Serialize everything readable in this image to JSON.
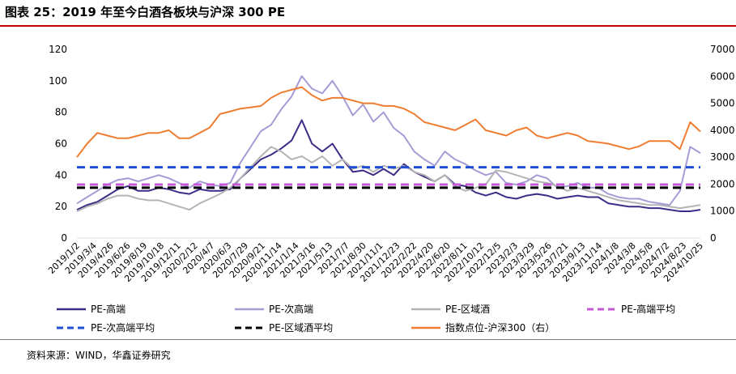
{
  "page": {
    "title": "图表 25：2019 年至今白酒各板块与沪深 300 PE",
    "source": "资料来源：WIND，华鑫证券研究"
  },
  "chart_data": {
    "type": "line",
    "title": "图表 25：2019 年至今白酒各板块与沪深 300 PE",
    "y_left": {
      "min": 0,
      "max": 120,
      "ticks": [
        0,
        20,
        40,
        60,
        80,
        100,
        120
      ]
    },
    "y_right": {
      "min": 0,
      "max": 7000,
      "ticks": [
        0,
        1000,
        2000,
        3000,
        4000,
        5000,
        6000,
        7000
      ]
    },
    "x_tick_labels": [
      "2019/1/2",
      "2019/3/4",
      "2019/4/26",
      "2019/6/26",
      "2019/8/19",
      "2019/10/18",
      "2019/12/11",
      "2020/2/12",
      "2020/4/7",
      "2020/6/3",
      "2020/7/29",
      "2020/9/21",
      "2020/11/14",
      "2021/1/14",
      "2021/3/16",
      "2021/5/13",
      "2021/7/7",
      "2021/8/30",
      "2021/11/1",
      "2021/12/23",
      "2022/2/22",
      "2022/4/20",
      "2022/6/20",
      "2022/8/11",
      "2022/10/12",
      "2022/12/5",
      "2023/2/3",
      "2023/3/29",
      "2023/5/26",
      "2023/7/21",
      "2023/9/13",
      "2023/11/14",
      "2024/1/8",
      "2024/3/8",
      "2024/5/8",
      "2024/7/2",
      "2024/8/23",
      "2024/10/25"
    ],
    "series": [
      {
        "name": "PE-高端",
        "axis": "left",
        "color": "#3f2a86",
        "style": "solid",
        "values": [
          18,
          21,
          23,
          27,
          31,
          33,
          30,
          30,
          32,
          31,
          29,
          28,
          31,
          30,
          30,
          31,
          38,
          44,
          50,
          53,
          57,
          62,
          75,
          60,
          55,
          60,
          50,
          42,
          43,
          40,
          44,
          40,
          47,
          42,
          39,
          36,
          40,
          34,
          33,
          29,
          27,
          29,
          26,
          25,
          27,
          28,
          27,
          25,
          26,
          27,
          26,
          26,
          22,
          21,
          20,
          20,
          19,
          19,
          18,
          17,
          17,
          18
        ]
      },
      {
        "name": "PE-次高端",
        "axis": "left",
        "color": "#a79bd6",
        "style": "solid",
        "values": [
          22,
          26,
          30,
          34,
          37,
          38,
          36,
          38,
          40,
          38,
          35,
          32,
          36,
          34,
          33,
          35,
          48,
          58,
          68,
          72,
          82,
          90,
          103,
          95,
          92,
          100,
          90,
          78,
          85,
          74,
          80,
          70,
          65,
          55,
          50,
          46,
          55,
          50,
          47,
          43,
          40,
          42,
          35,
          34,
          36,
          40,
          38,
          32,
          33,
          35,
          32,
          32,
          28,
          26,
          25,
          25,
          23,
          22,
          21,
          30,
          58,
          54
        ]
      },
      {
        "name": "PE-区域酒",
        "axis": "left",
        "color": "#b4b4b4",
        "style": "solid",
        "values": [
          17,
          20,
          22,
          25,
          27,
          27,
          25,
          24,
          24,
          22,
          20,
          18,
          22,
          25,
          28,
          32,
          38,
          45,
          52,
          58,
          55,
          50,
          52,
          48,
          52,
          46,
          50,
          44,
          46,
          42,
          46,
          44,
          46,
          42,
          40,
          36,
          40,
          33,
          30,
          32,
          34,
          43,
          42,
          40,
          38,
          36,
          35,
          33,
          30,
          32,
          30,
          28,
          26,
          24,
          23,
          22,
          21,
          21,
          20,
          19,
          20,
          21
        ]
      },
      {
        "name": "PE-高端平均",
        "axis": "left",
        "color": "#c557d8",
        "style": "dashed",
        "values": [
          34,
          34
        ]
      },
      {
        "name": "PE-次高端平均",
        "axis": "left",
        "color": "#1f4fd1",
        "style": "dashed",
        "values": [
          45,
          45
        ]
      },
      {
        "name": "PE-区域酒平均",
        "axis": "left",
        "color": "#000000",
        "style": "dashed",
        "values": [
          32,
          32
        ]
      },
      {
        "name": "指数点位-沪深300（右）",
        "axis": "right",
        "color": "#ee7d31",
        "style": "solid",
        "values": [
          3000,
          3500,
          3900,
          3800,
          3700,
          3700,
          3800,
          3900,
          3900,
          4000,
          3700,
          3700,
          3900,
          4100,
          4600,
          4700,
          4800,
          4850,
          4900,
          5200,
          5400,
          5500,
          5600,
          5300,
          5100,
          5200,
          5200,
          5100,
          5000,
          5000,
          4900,
          4900,
          4800,
          4600,
          4300,
          4200,
          4100,
          4000,
          4200,
          4400,
          4000,
          3900,
          3800,
          4000,
          4100,
          3800,
          3700,
          3800,
          3900,
          3800,
          3600,
          3550,
          3500,
          3400,
          3300,
          3400,
          3600,
          3600,
          3600,
          3300,
          4300,
          3950
        ]
      }
    ],
    "legend": {
      "position": "bottom",
      "entries": [
        "PE-高端",
        "PE-次高端",
        "PE-区域酒",
        "PE-高端平均",
        "PE-次高端平均",
        "PE-区域酒平均",
        "指数点位-沪深300（右）"
      ]
    }
  }
}
